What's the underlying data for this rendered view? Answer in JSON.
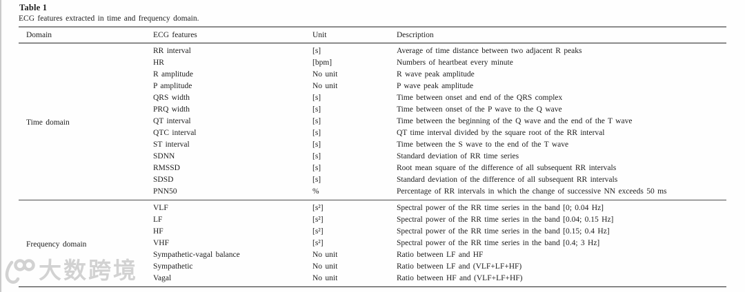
{
  "table": {
    "title": "Table 1",
    "caption": "ECG features extracted in time and frequency domain.",
    "columns": [
      "Domain",
      "ECG features",
      "Unit",
      "Description"
    ],
    "groups": [
      {
        "domain": "Time domain",
        "rows": [
          {
            "feature": "RR interval",
            "unit": "[s]",
            "description": "Average of time distance between two adjacent R peaks"
          },
          {
            "feature": "HR",
            "unit": "[bpm]",
            "description": "Numbers of heartbeat every minute"
          },
          {
            "feature": "R amplitude",
            "unit": "No unit",
            "description": "R wave peak amplitude"
          },
          {
            "feature": "P amplitude",
            "unit": "No unit",
            "description": "P wave peak amplitude"
          },
          {
            "feature": "QRS width",
            "unit": "[s]",
            "description": "Time between onset and end of the QRS complex"
          },
          {
            "feature": "PRQ width",
            "unit": "[s]",
            "description": "Time between onset of the P wave to the Q wave"
          },
          {
            "feature": "QT interval",
            "unit": "[s]",
            "description": "Time between the beginning of the Q wave and the end of the T wave"
          },
          {
            "feature": "QTC interval",
            "unit": "[s]",
            "description": "QT time interval divided by the square root of the RR interval"
          },
          {
            "feature": "ST interval",
            "unit": "[s]",
            "description": "Time between the S wave to the end of the T wave"
          },
          {
            "feature": "SDNN",
            "unit": "[s]",
            "description": "Standard deviation of RR time series"
          },
          {
            "feature": "RMSSD",
            "unit": "[s]",
            "description": "Root mean square of the difference of all subsequent RR intervals"
          },
          {
            "feature": "SDSD",
            "unit": "[s]",
            "description": "Standard deviation of the difference of all subsequent RR intervals"
          },
          {
            "feature": "PNN50",
            "unit": "%",
            "description": "Percentage of RR intervals in which the change of successive NN exceeds 50 ms"
          }
        ]
      },
      {
        "domain": "Frequency domain",
        "rows": [
          {
            "feature": "VLF",
            "unit": "[s²]",
            "description": "Spectral power of the RR time series in the band [0; 0.04 Hz]"
          },
          {
            "feature": "LF",
            "unit": "[s²]",
            "description": "Spectral power of the RR time series in the band [0.04; 0.15 Hz]"
          },
          {
            "feature": "HF",
            "unit": "[s²]",
            "description": "Spectral power of the RR time series in the band [0.15; 0.4 Hz]"
          },
          {
            "feature": "VHF",
            "unit": "[s²]",
            "description": "Spectral power of the RR time series in the band [0.4; 3 Hz]"
          },
          {
            "feature": "Sympathetic-vagal balance",
            "unit": "No unit",
            "description": "Ratio between LF and HF"
          },
          {
            "feature": "Sympathetic",
            "unit": "No unit",
            "description": "Ratio between LF and (VLF+LF+HF)"
          },
          {
            "feature": "Vagal",
            "unit": "No unit",
            "description": "Ratio between HF and (VLF+LF+HF)"
          }
        ]
      }
    ]
  },
  "watermark": {
    "text": "大数跨境",
    "color": "#d2d2d2"
  }
}
